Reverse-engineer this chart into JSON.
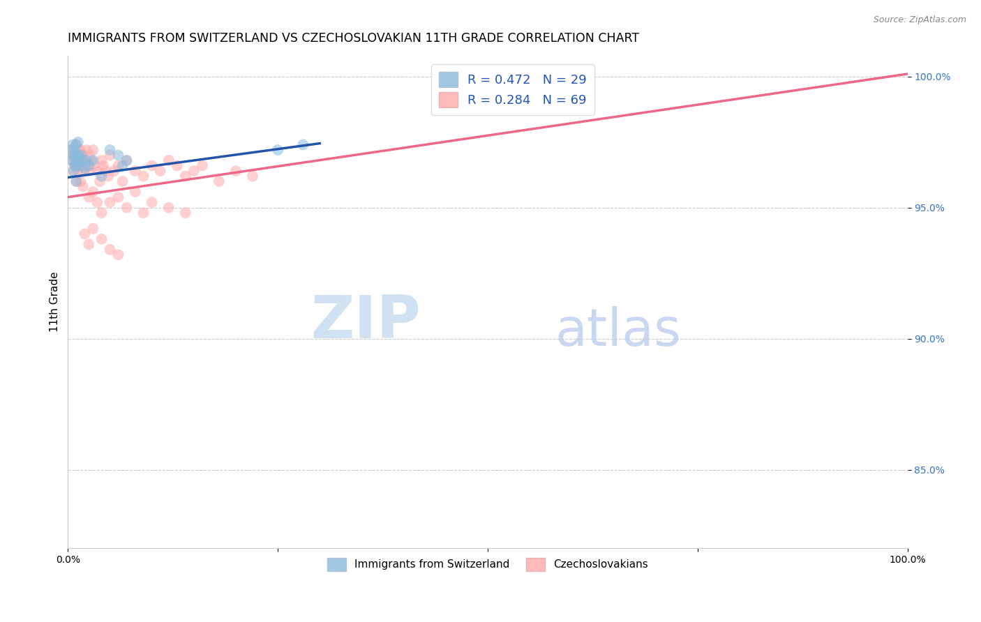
{
  "title": "IMMIGRANTS FROM SWITZERLAND VS CZECHOSLOVAKIAN 11TH GRADE CORRELATION CHART",
  "source": "Source: ZipAtlas.com",
  "ylabel": "11th Grade",
  "xlim": [
    0.0,
    1.0
  ],
  "ylim": [
    0.82,
    1.008
  ],
  "yticks": [
    0.85,
    0.9,
    0.95,
    1.0
  ],
  "ytick_labels": [
    "85.0%",
    "90.0%",
    "95.0%",
    "100.0%"
  ],
  "xticks": [
    0.0,
    0.25,
    0.5,
    0.75,
    1.0
  ],
  "xtick_labels": [
    "0.0%",
    "",
    "",
    "",
    "100.0%"
  ],
  "watermark_zip": "ZIP",
  "watermark_atlas": "atlas",
  "legend_r_blue": "R = 0.472",
  "legend_n_blue": "N = 29",
  "legend_r_pink": "R = 0.284",
  "legend_n_pink": "N = 69",
  "blue_color": "#88BBDD",
  "pink_color": "#FFAAAA",
  "blue_line_color": "#2255AA",
  "pink_line_color": "#EE6688",
  "scatter_alpha": 0.55,
  "scatter_size": 130,
  "blue_x": [
    0.004,
    0.005,
    0.006,
    0.007,
    0.007,
    0.008,
    0.008,
    0.009,
    0.009,
    0.01,
    0.01,
    0.01,
    0.012,
    0.012,
    0.014,
    0.015,
    0.016,
    0.018,
    0.02,
    0.022,
    0.025,
    0.03,
    0.04,
    0.05,
    0.06,
    0.065,
    0.07,
    0.25,
    0.28
  ],
  "blue_y": [
    0.972,
    0.968,
    0.974,
    0.97,
    0.964,
    0.966,
    0.972,
    0.97,
    0.968,
    0.974,
    0.966,
    0.96,
    0.975,
    0.97,
    0.968,
    0.966,
    0.97,
    0.968,
    0.965,
    0.968,
    0.966,
    0.968,
    0.962,
    0.972,
    0.97,
    0.966,
    0.968,
    0.972,
    0.974
  ],
  "pink_x": [
    0.004,
    0.005,
    0.006,
    0.007,
    0.008,
    0.009,
    0.01,
    0.01,
    0.011,
    0.012,
    0.012,
    0.013,
    0.014,
    0.015,
    0.015,
    0.016,
    0.017,
    0.018,
    0.019,
    0.02,
    0.022,
    0.024,
    0.025,
    0.026,
    0.028,
    0.03,
    0.032,
    0.035,
    0.038,
    0.04,
    0.042,
    0.045,
    0.048,
    0.05,
    0.055,
    0.06,
    0.065,
    0.07,
    0.08,
    0.09,
    0.1,
    0.11,
    0.12,
    0.13,
    0.14,
    0.15,
    0.16,
    0.18,
    0.2,
    0.22,
    0.018,
    0.025,
    0.03,
    0.035,
    0.04,
    0.05,
    0.06,
    0.07,
    0.08,
    0.09,
    0.1,
    0.12,
    0.14,
    0.02,
    0.025,
    0.03,
    0.04,
    0.05,
    0.06
  ],
  "pink_y": [
    0.968,
    0.972,
    0.964,
    0.97,
    0.968,
    0.966,
    0.974,
    0.96,
    0.968,
    0.972,
    0.964,
    0.966,
    0.97,
    0.972,
    0.96,
    0.968,
    0.966,
    0.97,
    0.964,
    0.968,
    0.972,
    0.966,
    0.964,
    0.97,
    0.968,
    0.972,
    0.966,
    0.964,
    0.96,
    0.968,
    0.966,
    0.964,
    0.962,
    0.97,
    0.964,
    0.966,
    0.96,
    0.968,
    0.964,
    0.962,
    0.966,
    0.964,
    0.968,
    0.966,
    0.962,
    0.964,
    0.966,
    0.96,
    0.964,
    0.962,
    0.958,
    0.954,
    0.956,
    0.952,
    0.948,
    0.952,
    0.954,
    0.95,
    0.956,
    0.948,
    0.952,
    0.95,
    0.948,
    0.94,
    0.936,
    0.942,
    0.938,
    0.934,
    0.932
  ],
  "grid_color": "#CCCCCC",
  "background_color": "#FFFFFF",
  "title_fontsize": 12.5,
  "axis_label_fontsize": 11,
  "tick_fontsize": 10,
  "blue_trend_x": [
    0.0,
    0.32
  ],
  "pink_trend_x": [
    0.0,
    1.0
  ]
}
